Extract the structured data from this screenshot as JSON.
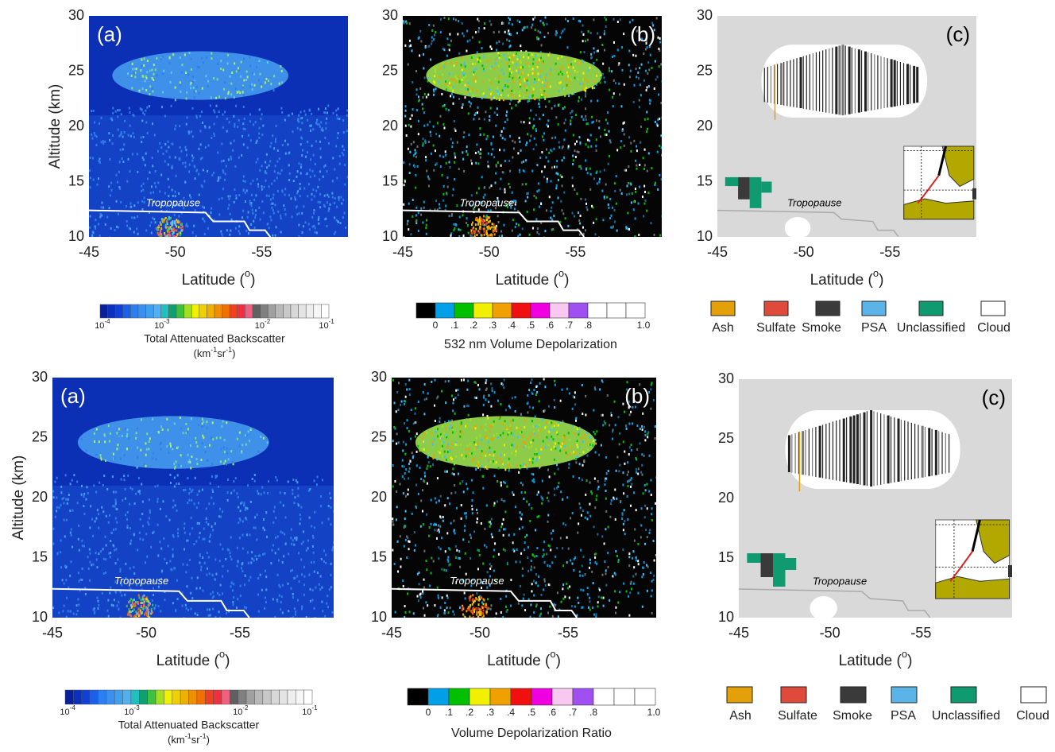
{
  "rows": [
    {
      "panels": [
        {
          "label": "(a)",
          "ylabel": "Altitude (km)",
          "yticks": [
            30,
            25,
            20,
            15,
            10
          ],
          "xticks": [
            -45,
            -50,
            -55
          ],
          "xlabel": {
            "text": "Latitude (",
            "sup": "o",
            "end": ")"
          },
          "annotation": "Tropopause"
        },
        {
          "label": "(b)",
          "yticks": [
            30,
            25,
            20,
            15,
            10
          ],
          "xticks": [
            -45,
            -50,
            -55
          ],
          "xlabel": {
            "text": "Latitude (",
            "sup": "o",
            "end": ")"
          },
          "annotation": "Tropopause"
        },
        {
          "label": "(c)",
          "yticks": [
            30,
            25,
            20,
            15,
            10
          ],
          "xticks": [
            -45,
            -50,
            -55
          ],
          "xlabel": {
            "text": "Latitude (",
            "sup": "o",
            "end": ")"
          },
          "annotation": "Tropopause"
        }
      ],
      "backscatter_colorbar": {
        "ticks": [
          {
            "base": "10",
            "exp": "-4"
          },
          {
            "base": "10",
            "exp": "-3"
          },
          {
            "base": "10",
            "exp": "-2"
          },
          {
            "base": "10",
            "exp": "-1"
          }
        ],
        "title": "Total Attenuated Backscatter",
        "unit": [
          "(km",
          "-1",
          "sr",
          "-1",
          ")"
        ]
      },
      "depolarization_colorbar": {
        "ticks": [
          "0",
          ".1",
          ".2",
          ".3",
          ".4",
          ".5",
          ".6",
          ".7",
          ".8",
          "1.0"
        ],
        "title": "532 nm Volume Depolarization"
      },
      "legend": [
        {
          "name": "Ash",
          "color": "#e3a008"
        },
        {
          "name": "Sulfate",
          "color": "#e04a3a"
        },
        {
          "name": "Smoke",
          "color": "#3a3a3a"
        },
        {
          "name": "PSA",
          "color": "#5ab4e8"
        },
        {
          "name": "Unclassified",
          "color": "#109a70"
        },
        {
          "name": "Cloud",
          "color": "#ffffff"
        }
      ]
    },
    {
      "panels": [
        {
          "label": "(a)",
          "ylabel": "Altitude (km)",
          "yticks": [
            30,
            25,
            20,
            15,
            10
          ],
          "xticks": [
            -45,
            -50,
            -55
          ],
          "xlabel": {
            "text": "Latitude (",
            "sup": "o",
            "end": ")"
          },
          "annotation": "Tropopause"
        },
        {
          "label": "(b)",
          "yticks": [
            30,
            25,
            20,
            15,
            10
          ],
          "xticks": [
            -45,
            -50,
            -55
          ],
          "xlabel": {
            "text": "Latitude (",
            "sup": "o",
            "end": ")"
          },
          "annotation": "Tropopause"
        },
        {
          "label": "(c)",
          "yticks": [
            30,
            25,
            20,
            15,
            10
          ],
          "xticks": [
            -45,
            -50,
            -55
          ],
          "xlabel": {
            "text": "Latitude (",
            "sup": "o",
            "end": ")"
          },
          "annotation": "Tropopause"
        }
      ],
      "backscatter_colorbar": {
        "ticks": [
          {
            "base": "10",
            "exp": "-4"
          },
          {
            "base": "10",
            "exp": "-3"
          },
          {
            "base": "10",
            "exp": "-2"
          },
          {
            "base": "10",
            "exp": "-1"
          }
        ],
        "title": "Total Attenuated Backscatter",
        "unit": [
          "(km",
          "-1",
          "sr",
          "-1",
          ")"
        ]
      },
      "depolarization_colorbar": {
        "ticks": [
          "0",
          ".1",
          ".2",
          ".3",
          ".4",
          ".5",
          ".6",
          ".7",
          ".8",
          "1.0"
        ],
        "title": "Volume Depolarization Ratio"
      },
      "legend": [
        {
          "name": "Ash",
          "color": "#e3a008"
        },
        {
          "name": "Sulfate",
          "color": "#e04a3a"
        },
        {
          "name": "Smoke",
          "color": "#3a3a3a"
        },
        {
          "name": "PSA",
          "color": "#5ab4e8"
        },
        {
          "name": "Unclassified",
          "color": "#109a70"
        },
        {
          "name": "Cloud",
          "color": "#ffffff"
        }
      ]
    }
  ]
}
